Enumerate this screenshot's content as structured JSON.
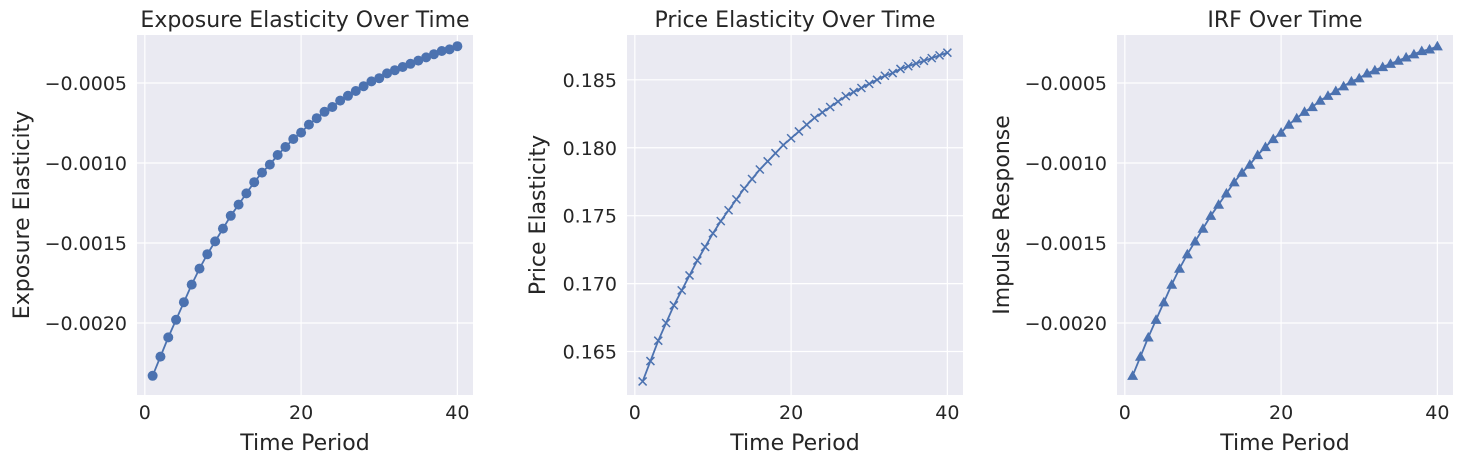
{
  "colors": {
    "series": "#4c72b0",
    "background": "#eaeaf2",
    "grid": "#ffffff",
    "text": "#262626"
  },
  "chart_data": [
    {
      "type": "line",
      "marker": "circle",
      "title": "Exposure Elasticity Over Time",
      "xlabel": "Time Period",
      "ylabel": "Exposure Elasticity",
      "xlim": [
        -1,
        42
      ],
      "ylim": [
        -0.00245,
        -0.0002
      ],
      "xticks": [
        0,
        20,
        40
      ],
      "xtick_labels": [
        "0",
        "20",
        "40"
      ],
      "yticks": [
        -0.002,
        -0.0015,
        -0.001,
        -0.0005
      ],
      "ytick_labels": [
        "−0.0020",
        "−0.0015",
        "−0.0010",
        "−0.0005"
      ],
      "grid": true,
      "series": [
        {
          "x": [
            1,
            2,
            3,
            4,
            5,
            6,
            7,
            8,
            9,
            10,
            11,
            12,
            13,
            14,
            15,
            16,
            17,
            18,
            19,
            20,
            21,
            22,
            23,
            24,
            25,
            26,
            27,
            28,
            29,
            30,
            31,
            32,
            33,
            34,
            35,
            36,
            37,
            38,
            39,
            40
          ],
          "values": [
            -0.00233,
            -0.00221,
            -0.00209,
            -0.00198,
            -0.00187,
            -0.00176,
            -0.00166,
            -0.00157,
            -0.00149,
            -0.00141,
            -0.00133,
            -0.00126,
            -0.00119,
            -0.00112,
            -0.00106,
            -0.00101,
            -0.00095,
            -0.0009,
            -0.00085,
            -0.00081,
            -0.00076,
            -0.00072,
            -0.00068,
            -0.00065,
            -0.00061,
            -0.00058,
            -0.00055,
            -0.00052,
            -0.00049,
            -0.00047,
            -0.00044,
            -0.00042,
            -0.0004,
            -0.00038,
            -0.00036,
            -0.00034,
            -0.00032,
            -0.0003,
            -0.00029,
            -0.00027
          ]
        }
      ]
    },
    {
      "type": "line",
      "marker": "x",
      "title": "Price Elasticity Over Time",
      "xlabel": "Time Period",
      "ylabel": "Price Elasticity",
      "xlim": [
        -1,
        42
      ],
      "ylim": [
        0.1618,
        0.1883
      ],
      "xticks": [
        0,
        20,
        40
      ],
      "xtick_labels": [
        "0",
        "20",
        "40"
      ],
      "yticks": [
        0.165,
        0.17,
        0.175,
        0.18,
        0.185
      ],
      "ytick_labels": [
        "0.165",
        "0.170",
        "0.175",
        "0.180",
        "0.185"
      ],
      "grid": true,
      "series": [
        {
          "x": [
            1,
            2,
            3,
            4,
            5,
            6,
            7,
            8,
            9,
            10,
            11,
            12,
            13,
            14,
            15,
            16,
            17,
            18,
            19,
            20,
            21,
            22,
            23,
            24,
            25,
            26,
            27,
            28,
            29,
            30,
            31,
            32,
            33,
            34,
            35,
            36,
            37,
            38,
            39,
            40
          ],
          "values": [
            0.1628,
            0.1643,
            0.1658,
            0.1671,
            0.1684,
            0.1695,
            0.1706,
            0.1717,
            0.1727,
            0.1737,
            0.1746,
            0.1754,
            0.1762,
            0.177,
            0.1777,
            0.1784,
            0.179,
            0.1796,
            0.1802,
            0.1807,
            0.1812,
            0.1817,
            0.1822,
            0.1826,
            0.183,
            0.1834,
            0.1838,
            0.1841,
            0.1844,
            0.1847,
            0.185,
            0.1853,
            0.1855,
            0.1858,
            0.186,
            0.1862,
            0.1864,
            0.1866,
            0.1868,
            0.187
          ]
        }
      ]
    },
    {
      "type": "line",
      "marker": "triangle",
      "title": "IRF Over Time",
      "xlabel": "Time Period",
      "ylabel": "Impulse Response",
      "xlim": [
        -1,
        42
      ],
      "ylim": [
        -0.00245,
        -0.0002
      ],
      "xticks": [
        0,
        20,
        40
      ],
      "xtick_labels": [
        "0",
        "20",
        "40"
      ],
      "yticks": [
        -0.002,
        -0.0015,
        -0.001,
        -0.0005
      ],
      "ytick_labels": [
        "−0.0020",
        "−0.0015",
        "−0.0010",
        "−0.0005"
      ],
      "grid": true,
      "series": [
        {
          "x": [
            1,
            2,
            3,
            4,
            5,
            6,
            7,
            8,
            9,
            10,
            11,
            12,
            13,
            14,
            15,
            16,
            17,
            18,
            19,
            20,
            21,
            22,
            23,
            24,
            25,
            26,
            27,
            28,
            29,
            30,
            31,
            32,
            33,
            34,
            35,
            36,
            37,
            38,
            39,
            40
          ],
          "values": [
            -0.00233,
            -0.00221,
            -0.00209,
            -0.00198,
            -0.00187,
            -0.00176,
            -0.00166,
            -0.00157,
            -0.00149,
            -0.00141,
            -0.00133,
            -0.00126,
            -0.00119,
            -0.00112,
            -0.00106,
            -0.00101,
            -0.00095,
            -0.0009,
            -0.00085,
            -0.00081,
            -0.00076,
            -0.00072,
            -0.00068,
            -0.00065,
            -0.00061,
            -0.00058,
            -0.00055,
            -0.00052,
            -0.00049,
            -0.00047,
            -0.00044,
            -0.00042,
            -0.0004,
            -0.00038,
            -0.00036,
            -0.00034,
            -0.00032,
            -0.0003,
            -0.00029,
            -0.00027
          ]
        }
      ]
    }
  ]
}
